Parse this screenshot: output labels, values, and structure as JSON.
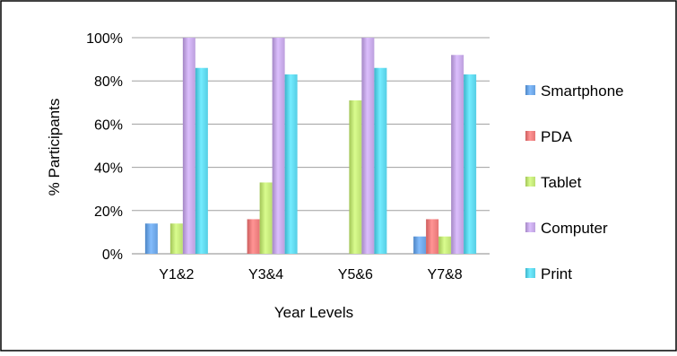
{
  "chart_data": {
    "type": "bar",
    "title": "",
    "xlabel": "Year Levels",
    "ylabel": "% Participants",
    "categories": [
      "Y1&2",
      "Y3&4",
      "Y5&6",
      "Y7&8"
    ],
    "series": [
      {
        "name": "Smartphone",
        "values": [
          14,
          0,
          0,
          8
        ]
      },
      {
        "name": "PDA",
        "values": [
          0,
          16,
          0,
          16
        ]
      },
      {
        "name": "Tablet",
        "values": [
          14,
          33,
          71,
          8
        ]
      },
      {
        "name": "Computer",
        "values": [
          100,
          100,
          100,
          92
        ]
      },
      {
        "name": "Print",
        "values": [
          86,
          83,
          86,
          83
        ]
      }
    ],
    "ylim": [
      0,
      100
    ],
    "yticks": [
      "0%",
      "20%",
      "40%",
      "60%",
      "80%",
      "100%"
    ],
    "ytick_values": [
      0,
      20,
      40,
      60,
      80,
      100
    ],
    "grid": true,
    "legend_position": "right",
    "colors": [
      "#6fa8e8",
      "#f08080",
      "#c5e87a",
      "#c7aae8",
      "#5fd8ee"
    ]
  }
}
